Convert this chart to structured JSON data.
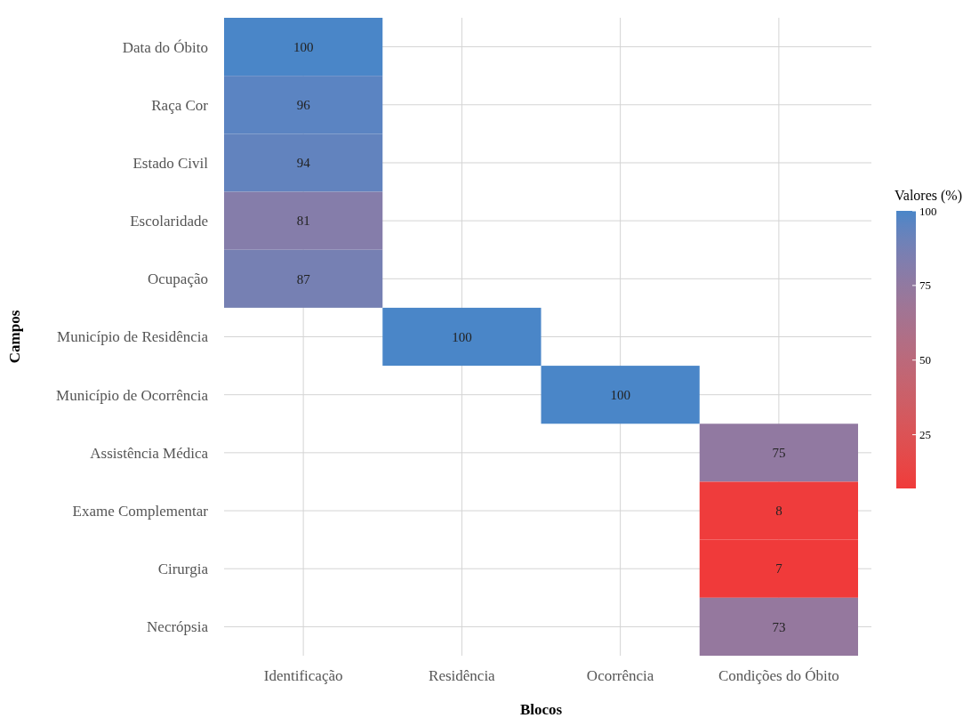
{
  "chart_data": {
    "type": "heatmap",
    "xlabel": "Blocos",
    "ylabel": "Campos",
    "clabel": "Valores (%)",
    "categories": [
      "Identificação",
      "Residência",
      "Ocorrência",
      "Condições do Óbito"
    ],
    "y_categories": [
      "Data do Óbito",
      "Raça Cor",
      "Estado Civil",
      "Escolaridade",
      "Ocupação",
      "Município de Residência",
      "Município de Ocorrência",
      "Assistência Médica",
      "Exame Complementar",
      "Cirurgia",
      "Necrópsia"
    ],
    "cells": [
      [
        100,
        null,
        null,
        null
      ],
      [
        96,
        null,
        null,
        null
      ],
      [
        94,
        null,
        null,
        null
      ],
      [
        81,
        null,
        null,
        null
      ],
      [
        87,
        null,
        null,
        null
      ],
      [
        null,
        100,
        null,
        null
      ],
      [
        null,
        null,
        100,
        null
      ],
      [
        null,
        null,
        null,
        75
      ],
      [
        null,
        null,
        null,
        8
      ],
      [
        null,
        null,
        null,
        7
      ],
      [
        null,
        null,
        null,
        73
      ]
    ],
    "clim": [
      7,
      100
    ],
    "cticks": [
      25,
      50,
      75,
      100
    ],
    "grid": true,
    "data_labels": true
  }
}
